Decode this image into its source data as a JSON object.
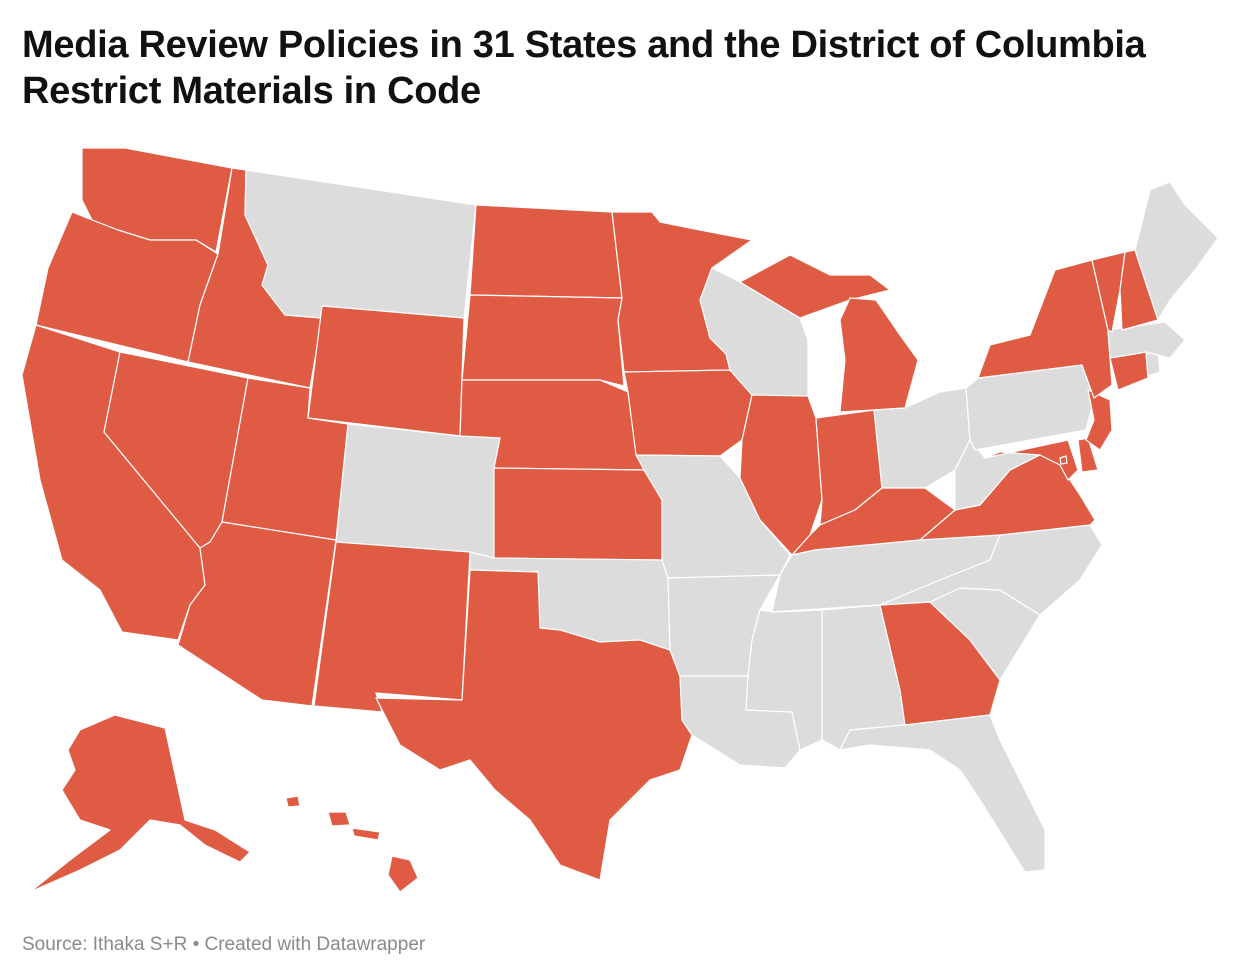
{
  "header": {
    "title": "Media Review Policies in 31 States and the District of Columbia Restrict Materials in Code"
  },
  "colors": {
    "restricts": "#e05b43",
    "no_policy": "#dcdcdc",
    "border": "#ffffff"
  },
  "map": {
    "restricting_states": [
      "Washington",
      "Oregon",
      "California",
      "Idaho",
      "Nevada",
      "Utah",
      "Arizona",
      "Wyoming",
      "New Mexico",
      "North Dakota",
      "South Dakota",
      "Nebraska",
      "Kansas",
      "Texas",
      "Minnesota",
      "Iowa",
      "Illinois",
      "Michigan",
      "Indiana",
      "Kentucky",
      "Georgia",
      "Virginia",
      "Maryland",
      "Delaware",
      "New Jersey",
      "New York",
      "Connecticut",
      "Vermont",
      "New Hampshire",
      "Alaska",
      "Hawaii",
      "District of Columbia"
    ],
    "other_states": [
      "Montana",
      "Colorado",
      "Oklahoma",
      "Missouri",
      "Arkansas",
      "Louisiana",
      "Wisconsin",
      "Mississippi",
      "Alabama",
      "Tennessee",
      "Ohio",
      "West Virginia",
      "Pennsylvania",
      "North Carolina",
      "South Carolina",
      "Florida",
      "Maine",
      "Massachusetts",
      "Rhode Island"
    ]
  },
  "footer": {
    "source": "Source: Ithaka S+R • Created with Datawrapper"
  }
}
